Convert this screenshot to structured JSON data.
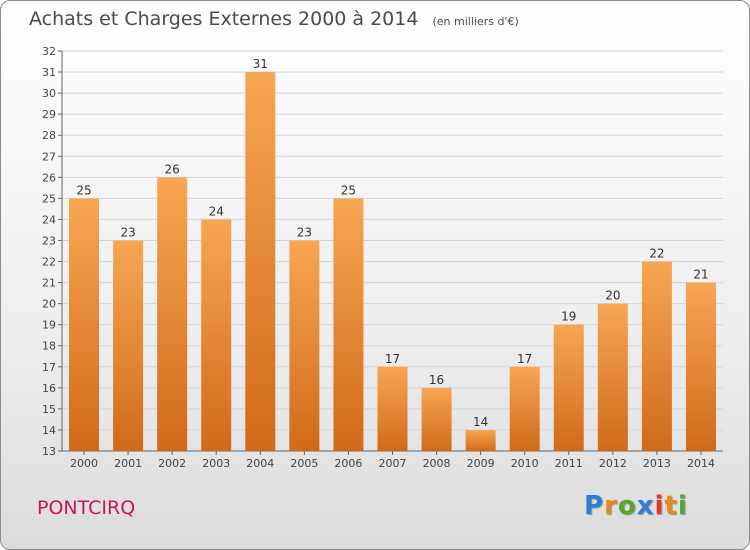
{
  "header": {
    "title": "Achats et Charges Externes 2000 à 2014",
    "unit": "(en milliers d'€)"
  },
  "commune": "PONTCIRQ",
  "brand": {
    "letters": [
      "P",
      "r",
      "o",
      "x",
      "i",
      "t",
      "i"
    ]
  },
  "colors": {
    "bar_top": "#f7a654",
    "bar_bottom": "#d06a1a",
    "grid": "#d5d5d5",
    "commune": "#c2185b"
  },
  "chart_data": {
    "type": "bar",
    "title": "Achats et Charges Externes 2000 à 2014",
    "categories": [
      "2000",
      "2001",
      "2002",
      "2003",
      "2004",
      "2005",
      "2006",
      "2007",
      "2008",
      "2009",
      "2010",
      "2011",
      "2012",
      "2013",
      "2014"
    ],
    "values": [
      25,
      23,
      26,
      24,
      31,
      23,
      25,
      17,
      16,
      14,
      17,
      19,
      20,
      22,
      21
    ],
    "ylim": [
      13,
      32
    ],
    "yticks": [
      13,
      14,
      15,
      16,
      17,
      18,
      19,
      20,
      21,
      22,
      23,
      24,
      25,
      26,
      27,
      28,
      29,
      30,
      31,
      32
    ],
    "xlabel": "",
    "ylabel": "",
    "grid": true,
    "data_labels": true
  }
}
